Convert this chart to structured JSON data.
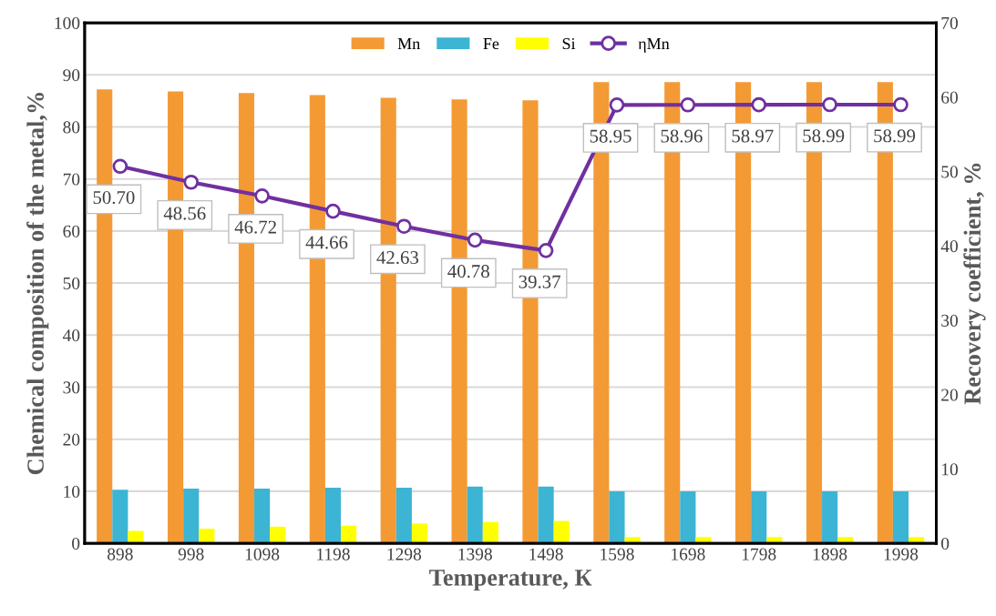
{
  "chart_data": {
    "type": "bar",
    "xlabel": "Temperature, К",
    "ylabel": "Chemical composition of the metal,%",
    "y2label": "Recovery coefficient, %",
    "categories": [
      "898",
      "998",
      "1098",
      "1198",
      "1298",
      "1398",
      "1498",
      "1598",
      "1698",
      "1798",
      "1898",
      "1998"
    ],
    "series": [
      {
        "name": "Mn",
        "color": "#f39a35",
        "values": [
          87.2,
          86.8,
          86.5,
          86.1,
          85.6,
          85.3,
          85.1,
          88.6,
          88.6,
          88.6,
          88.6,
          88.6
        ]
      },
      {
        "name": "Fe",
        "color": "#3cb4d3",
        "values": [
          10.3,
          10.5,
          10.5,
          10.7,
          10.7,
          10.9,
          10.9,
          10.0,
          10.0,
          10.0,
          10.0,
          10.0
        ]
      },
      {
        "name": "Si",
        "color": "#ffff00",
        "values": [
          2.4,
          2.8,
          3.2,
          3.4,
          3.8,
          4.1,
          4.3,
          1.2,
          1.2,
          1.2,
          1.2,
          1.2
        ]
      },
      {
        "name": "ηMn",
        "type": "line",
        "axis": "y2",
        "color": "#7030a0",
        "marker": "circle",
        "data_labels": true,
        "values": [
          50.7,
          48.56,
          46.72,
          44.66,
          42.63,
          40.78,
          39.37,
          58.95,
          58.96,
          58.97,
          58.99,
          58.99
        ],
        "value_labels": [
          "50.70",
          "48.56",
          "46.72",
          "44.66",
          "42.63",
          "40.78",
          "39.37",
          "58.95",
          "58.96",
          "58.97",
          "58.99",
          "58.99"
        ]
      }
    ],
    "ylim": [
      0,
      100
    ],
    "yticks": [
      0,
      10,
      20,
      30,
      40,
      50,
      60,
      70,
      80,
      90,
      100
    ],
    "y2lim": [
      0,
      70
    ],
    "y2ticks": [
      0,
      10,
      20,
      30,
      40,
      50,
      60,
      70
    ],
    "grid": "y",
    "legend": "top"
  }
}
